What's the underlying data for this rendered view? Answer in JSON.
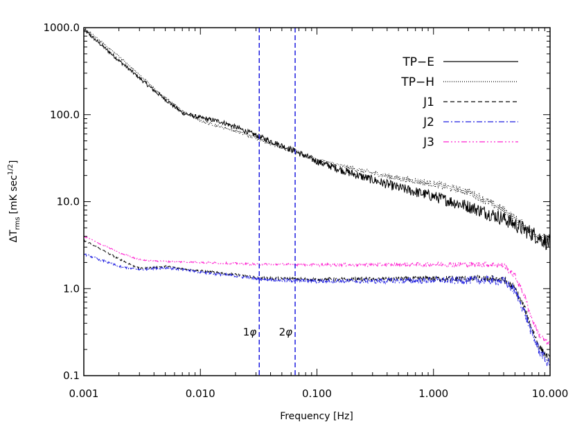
{
  "chart_data": {
    "type": "line",
    "xlabel": "Frequency [Hz]",
    "ylabel": "ΔT",
    "ylabel_sub": "rms",
    "ylabel_units": "[mK sec",
    "ylabel_sup": "1/2",
    "ylabel_close": "]",
    "xscale": "log",
    "yscale": "log",
    "xlim": [
      0.001,
      10.0
    ],
    "ylim": [
      0.1,
      1000.0
    ],
    "xticks": [
      0.001,
      0.01,
      0.1,
      1.0,
      10.0
    ],
    "xtick_labels": [
      "0.001",
      "0.010",
      "0.100",
      "1.000",
      "10.000"
    ],
    "yticks": [
      0.1,
      1.0,
      10.0,
      100.0,
      1000.0
    ],
    "ytick_labels": [
      "0.1",
      "1.0",
      "10.0",
      "100.0",
      "1000.0"
    ],
    "legend_position": "top-right",
    "series": [
      {
        "name": "TP−E",
        "color": "#000000",
        "dash": "solid",
        "noise": 0.05,
        "x": [
          0.001,
          0.002,
          0.004,
          0.007,
          0.01,
          0.015,
          0.02,
          0.03,
          0.05,
          0.065,
          0.1,
          0.2,
          0.5,
          1.0,
          2.0,
          4.0,
          7.0,
          10.0
        ],
        "y": [
          950,
          420,
          190,
          105,
          92,
          83,
          72,
          58,
          44,
          38,
          29,
          21,
          14.5,
          11.5,
          8.8,
          6.4,
          4.3,
          3.3
        ]
      },
      {
        "name": "TP−H",
        "color": "#000000",
        "dash": "1,2",
        "noise": 0.03,
        "x": [
          0.001,
          0.002,
          0.004,
          0.007,
          0.01,
          0.02,
          0.03,
          0.05,
          0.065,
          0.1,
          0.2,
          0.5,
          1.0,
          2.0,
          4.0,
          7.0,
          10.0
        ],
        "y": [
          1000,
          470,
          200,
          110,
          85,
          65,
          54,
          42,
          38,
          30,
          24,
          18.5,
          16,
          13,
          8.0,
          4.5,
          3.4
        ]
      },
      {
        "name": "J1",
        "color": "#000000",
        "dash": "6,4",
        "noise": 0.025,
        "x": [
          0.001,
          0.002,
          0.003,
          0.005,
          0.01,
          0.02,
          0.03,
          0.05,
          0.1,
          0.3,
          1.0,
          2.0,
          3.0,
          4.0,
          5.0,
          6.0,
          7.0,
          8.0,
          10.0
        ],
        "y": [
          3.6,
          2.2,
          1.7,
          1.8,
          1.6,
          1.45,
          1.35,
          1.3,
          1.28,
          1.28,
          1.3,
          1.3,
          1.3,
          1.28,
          1.0,
          0.6,
          0.35,
          0.22,
          0.15
        ]
      },
      {
        "name": "J2",
        "color": "#1a1ae0",
        "dash": "8,3,2,3",
        "noise": 0.03,
        "x": [
          0.001,
          0.002,
          0.003,
          0.005,
          0.01,
          0.02,
          0.03,
          0.05,
          0.1,
          0.3,
          1.0,
          2.0,
          3.0,
          4.0,
          5.0,
          6.0,
          7.0,
          8.0,
          10.0
        ],
        "y": [
          2.5,
          1.8,
          1.65,
          1.75,
          1.55,
          1.4,
          1.3,
          1.25,
          1.22,
          1.22,
          1.25,
          1.25,
          1.25,
          1.22,
          0.95,
          0.55,
          0.3,
          0.2,
          0.13
        ]
      },
      {
        "name": "J3",
        "color": "#ff1ccf",
        "dash": "8,3,2,3,2,3,2,3",
        "noise": 0.02,
        "x": [
          0.001,
          0.002,
          0.003,
          0.005,
          0.01,
          0.02,
          0.03,
          0.05,
          0.1,
          0.3,
          1.0,
          2.0,
          3.0,
          4.0,
          5.0,
          6.0,
          7.0,
          8.0,
          10.0
        ],
        "y": [
          4.0,
          2.6,
          2.15,
          2.05,
          2.0,
          1.95,
          1.9,
          1.9,
          1.88,
          1.88,
          1.9,
          1.9,
          1.9,
          1.85,
          1.4,
          0.85,
          0.45,
          0.3,
          0.22
        ]
      }
    ],
    "vlines": [
      {
        "x": 0.032,
        "label_prefix": "1",
        "label_symbol": "φ",
        "color": "#1a1ae0"
      },
      {
        "x": 0.065,
        "label_prefix": "2",
        "label_symbol": "φ",
        "color": "#1a1ae0"
      }
    ],
    "vline_label_y": 0.29
  }
}
